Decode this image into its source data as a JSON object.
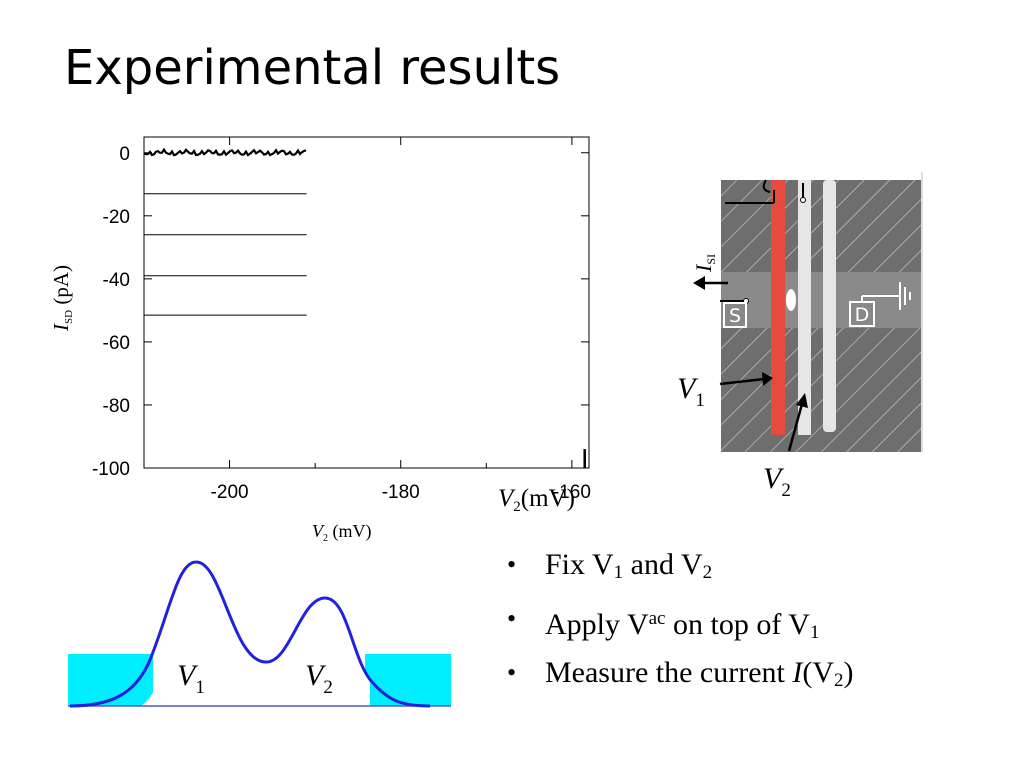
{
  "slide": {
    "title": "Experimental results"
  },
  "plot": {
    "ylabel_var": "I",
    "ylabel_sub": "SD",
    "ylabel_unit": "(pA)",
    "xlabel_var": "V",
    "xlabel_sub": "2",
    "xlabel_unit": "(mV)",
    "overlay_label_var": "V",
    "overlay_label_sub": "2",
    "overlay_label_unit": "(mV)"
  },
  "chart_data": {
    "type": "line",
    "xlim": [
      -210,
      -158
    ],
    "ylim": [
      -100,
      5
    ],
    "x_ticks": [
      -200,
      -180,
      -160
    ],
    "x_tick_labels": [
      "-200",
      "-180",
      "-160"
    ],
    "y_ticks": [
      0,
      -20,
      -40,
      -60,
      -80,
      -100
    ],
    "y_tick_labels": [
      "0",
      "-20",
      "-40",
      "-60",
      "-80",
      "-100"
    ],
    "grid": false,
    "series": [
      {
        "x": [
          -210,
          -191
        ],
        "y": [
          0,
          0
        ]
      },
      {
        "x": [
          -210,
          -191
        ],
        "y": [
          -13,
          -13
        ]
      },
      {
        "x": [
          -210,
          -191
        ],
        "y": [
          -26,
          -26
        ]
      },
      {
        "x": [
          -210,
          -191
        ],
        "y": [
          -39,
          -39
        ]
      },
      {
        "x": [
          -210,
          -191
        ],
        "y": [
          -51.5,
          -51.5
        ]
      }
    ],
    "marker": {
      "x": -158.5,
      "y0": -100,
      "y1": -94
    }
  },
  "device": {
    "current_var": "I",
    "current_sub": "SI",
    "source_label": "S",
    "drain_label": "D",
    "gate1_var": "V",
    "gate1_sub": "1",
    "gate2_var": "V",
    "gate2_sub": "2"
  },
  "potential": {
    "label1_var": "V",
    "label1_sub": "1",
    "label2_var": "V",
    "label2_sub": "2",
    "line_color": "#2222dd",
    "fill_color": "#00eeff"
  },
  "bullets": [
    {
      "pre": "Fix V",
      "sub1": "1",
      "mid": " and V",
      "sub2": "2"
    },
    {
      "pre": "Apply V",
      "sup": "ac",
      "mid": " on top of V",
      "sub": "1"
    },
    {
      "pre": "Measure the current ",
      "italic": "I",
      "mid": "(V",
      "sub": "2",
      "post": ")"
    }
  ]
}
